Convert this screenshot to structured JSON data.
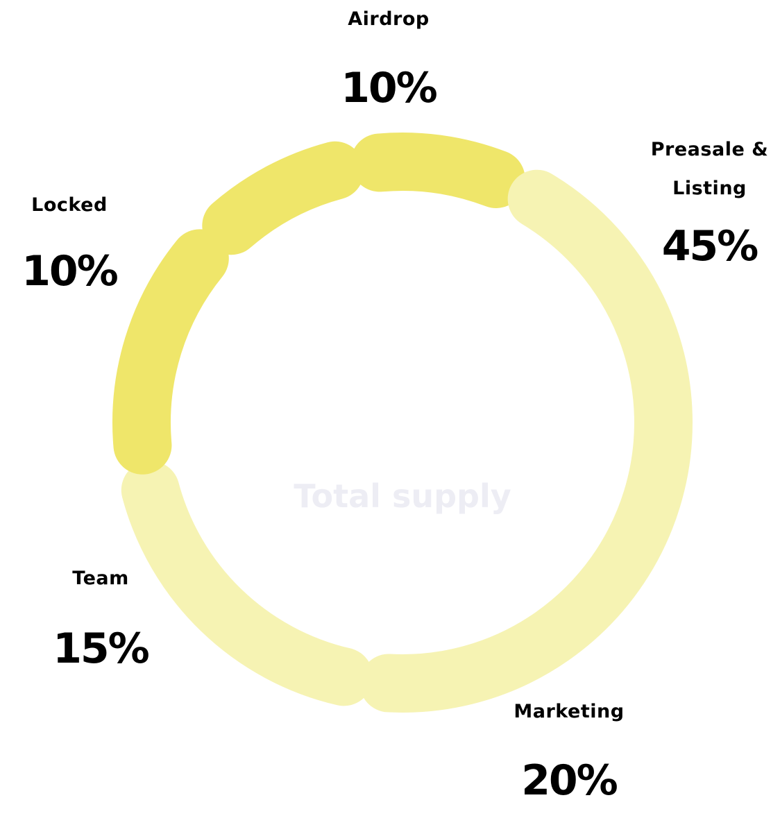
{
  "chart_data": {
    "type": "pie",
    "variant": "donut",
    "center_label": "Total supply",
    "start": "top",
    "direction": "clockwise",
    "slices": [
      {
        "label": "Airdrop",
        "value": 10,
        "display": "10%",
        "color": "#efe66a"
      },
      {
        "label": "Preasale & Listing",
        "value": 45,
        "display": "45%",
        "color": "#f6f3b3"
      },
      {
        "label": "Marketing",
        "value": 20,
        "display": "20%",
        "color": "#f6f3b3"
      },
      {
        "label": "Team",
        "value": 15,
        "display": "15%",
        "color": "#efe66a"
      },
      {
        "label": "Locked",
        "value": 10,
        "display": "10%",
        "color": "#efe66a"
      }
    ]
  }
}
